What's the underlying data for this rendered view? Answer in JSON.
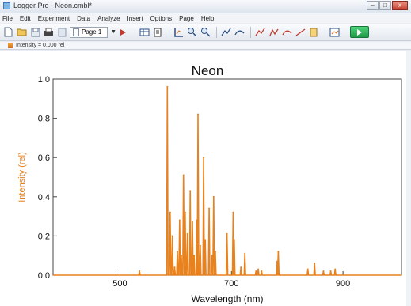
{
  "window": {
    "title": "Logger Pro - Neon.cmbl*"
  },
  "window_controls": {
    "minimize": "–",
    "maximize": "□",
    "close": "x"
  },
  "menu": [
    "File",
    "Edit",
    "Experiment",
    "Data",
    "Analyze",
    "Insert",
    "Options",
    "Page",
    "Help"
  ],
  "toolbar": {
    "page_selector": "Page 1",
    "buttons": [
      "new-file-icon",
      "open-file-icon",
      "save-icon",
      "print-icon",
      "page-icon",
      "page-select",
      "arrow-icon",
      "table-icon",
      "data-icon",
      "autoscale-icon",
      "zoom-in-icon",
      "zoom-out-icon",
      "examine-icon",
      "tangent-icon",
      "integral-icon",
      "statistics-icon",
      "curve-fit-icon",
      "linear-fit-icon",
      "notebook-icon",
      "chart-icon",
      "collect-button"
    ]
  },
  "meter": {
    "text": "Intensity = 0.000 rel"
  },
  "colors": {
    "series": "#e8821e",
    "axis": "#333333"
  },
  "chart_data": {
    "type": "line",
    "title": "Neon",
    "xlabel": "Wavelength (nm)",
    "ylabel": "Intensity (rel)",
    "xlim": [
      380,
      1005
    ],
    "ylim": [
      0,
      1.0
    ],
    "xticks": [
      500,
      700,
      900
    ],
    "yticks": [
      0.0,
      0.2,
      0.4,
      0.6,
      0.8,
      1.0
    ],
    "ytick_labels": [
      "0.0",
      "0.2",
      "0.4",
      "0.6",
      "0.8",
      "1.0"
    ],
    "grid": false,
    "series": [
      {
        "peaks": [
          {
            "x": 535,
            "y": 0.02
          },
          {
            "x": 585,
            "y": 0.96
          },
          {
            "x": 590,
            "y": 0.32
          },
          {
            "x": 594,
            "y": 0.2
          },
          {
            "x": 598,
            "y": 0.04
          },
          {
            "x": 603,
            "y": 0.12
          },
          {
            "x": 607,
            "y": 0.28
          },
          {
            "x": 610,
            "y": 0.1
          },
          {
            "x": 614,
            "y": 0.51
          },
          {
            "x": 617,
            "y": 0.32
          },
          {
            "x": 621,
            "y": 0.21
          },
          {
            "x": 626,
            "y": 0.43
          },
          {
            "x": 630,
            "y": 0.27
          },
          {
            "x": 633,
            "y": 0.1
          },
          {
            "x": 638,
            "y": 0.28
          },
          {
            "x": 640,
            "y": 0.82
          },
          {
            "x": 644,
            "y": 0.15
          },
          {
            "x": 650,
            "y": 0.6
          },
          {
            "x": 653,
            "y": 0.18
          },
          {
            "x": 660,
            "y": 0.34
          },
          {
            "x": 665,
            "y": 0.1
          },
          {
            "x": 668,
            "y": 0.4
          },
          {
            "x": 671,
            "y": 0.12
          },
          {
            "x": 692,
            "y": 0.21
          },
          {
            "x": 703,
            "y": 0.32
          },
          {
            "x": 705,
            "y": 0.18
          },
          {
            "x": 717,
            "y": 0.04
          },
          {
            "x": 724,
            "y": 0.11
          },
          {
            "x": 744,
            "y": 0.02
          },
          {
            "x": 748,
            "y": 0.03
          },
          {
            "x": 754,
            "y": 0.02
          },
          {
            "x": 782,
            "y": 0.07
          },
          {
            "x": 784,
            "y": 0.12
          },
          {
            "x": 837,
            "y": 0.03
          },
          {
            "x": 849,
            "y": 0.06
          },
          {
            "x": 865,
            "y": 0.02
          },
          {
            "x": 878,
            "y": 0.02
          },
          {
            "x": 886,
            "y": 0.03
          }
        ]
      }
    ]
  }
}
